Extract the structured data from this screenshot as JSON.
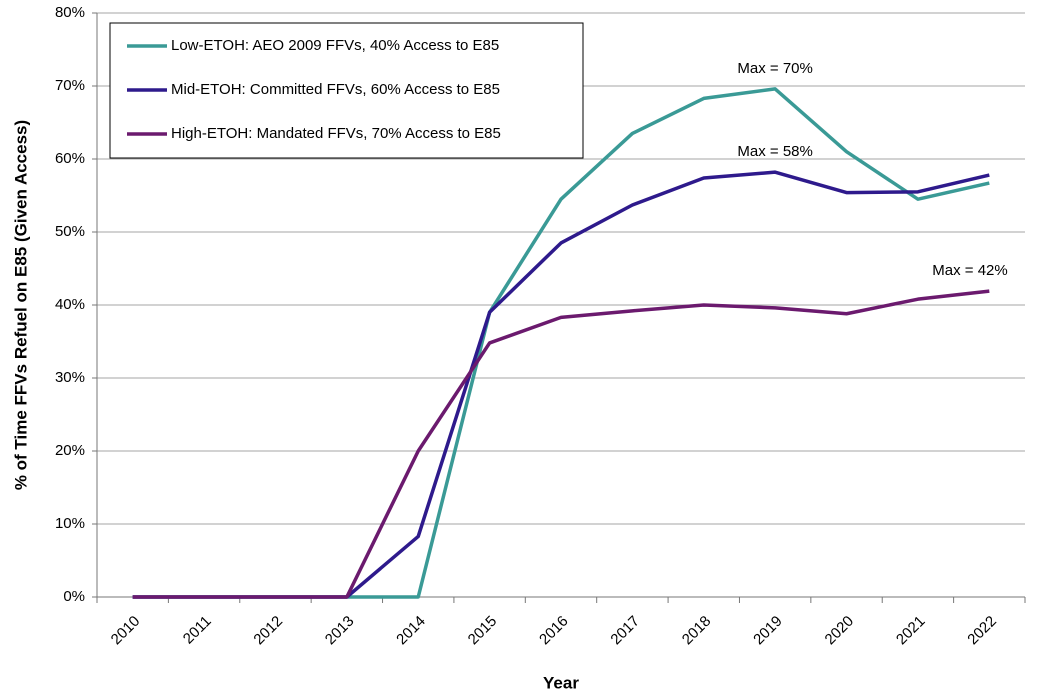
{
  "chart_data": {
    "type": "line",
    "x_label": "Year",
    "y_label": "% of Time FFVs Refuel on E85 (Given Access)",
    "categories": [
      "2010",
      "2011",
      "2012",
      "2013",
      "2014",
      "2015",
      "2016",
      "2017",
      "2018",
      "2019",
      "2020",
      "2021",
      "2022"
    ],
    "series": [
      {
        "name": "Low-ETOH: AEO 2009 FFVs, 40% Access to E85",
        "color": "#3a9a96",
        "values": [
          0,
          0,
          0,
          0,
          0,
          39,
          54.5,
          63.5,
          68.3,
          69.6,
          61,
          54.5,
          56.7
        ]
      },
      {
        "name": "Mid-ETOH: Committed FFVs, 60% Access to E85",
        "color": "#2e1a8c",
        "values": [
          0,
          0,
          0,
          0,
          8.3,
          39,
          48.5,
          53.7,
          57.4,
          58.2,
          55.4,
          55.5,
          57.8
        ]
      },
      {
        "name": "High-ETOH: Mandated FFVs, 70% Access to E85",
        "color": "#6b1a6e",
        "values": [
          0,
          0,
          0,
          0,
          20,
          34.8,
          38.3,
          39.2,
          40,
          39.6,
          38.8,
          40.8,
          41.9
        ]
      }
    ],
    "annotations": [
      "Max = 70%",
      "Max = 58%",
      "Max = 42%"
    ],
    "ylim": [
      0,
      80
    ],
    "yticks": [
      {
        "value": 0,
        "label": "0%"
      },
      {
        "value": 10,
        "label": "10%"
      },
      {
        "value": 20,
        "label": "20%"
      },
      {
        "value": 30,
        "label": "30%"
      },
      {
        "value": 40,
        "label": "40%"
      },
      {
        "value": 50,
        "label": "50%"
      },
      {
        "value": 60,
        "label": "60%"
      },
      {
        "value": 70,
        "label": "70%"
      },
      {
        "value": 80,
        "label": "80%"
      }
    ],
    "grid": true,
    "legend": "top-left"
  }
}
